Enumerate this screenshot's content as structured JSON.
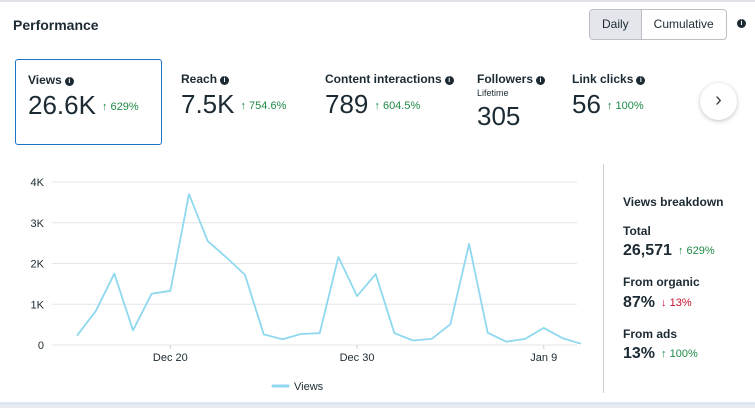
{
  "header": {
    "title": "Performance",
    "toggle": [
      "Daily",
      "Cumulative"
    ]
  },
  "metrics": [
    {
      "label": "Views",
      "value": "26.6K",
      "change": "↑ 629%"
    },
    {
      "label": "Reach",
      "value": "7.5K",
      "change": "↑ 754.6%"
    },
    {
      "label": "Content interactions",
      "value": "789",
      "change": "↑ 604.5%"
    },
    {
      "label": "Followers",
      "sub": "Lifetime",
      "value": "305"
    },
    {
      "label": "Link clicks",
      "value": "56",
      "change": "↑ 100%"
    }
  ],
  "chart_data": {
    "type": "line",
    "title": "",
    "xlabel": "",
    "ylabel": "",
    "ylim": [
      0,
      4000
    ],
    "y_ticks": [
      "0",
      "1K",
      "2K",
      "3K",
      "4K"
    ],
    "x_tick_labels": [
      "Dec 20",
      "Dec 30",
      "Jan 9"
    ],
    "legend": "bottom-center",
    "series": [
      {
        "name": "Views",
        "color": "#8fd8f0",
        "values": [
          230,
          830,
          1750,
          360,
          1260,
          1330,
          3700,
          2550,
          2150,
          1720,
          260,
          140,
          270,
          290,
          2160,
          1200,
          1740,
          290,
          110,
          150,
          510,
          2480,
          300,
          80,
          150,
          420,
          170,
          30
        ]
      }
    ]
  },
  "breakdown": {
    "title": "Views breakdown",
    "total_label": "Total",
    "total_value": "26,571",
    "total_change": "↑ 629%",
    "organic_label": "From organic",
    "organic_value": "87%",
    "organic_change": "↓ 13%",
    "ads_label": "From ads",
    "ads_value": "13%",
    "ads_change": "↑ 100%"
  }
}
